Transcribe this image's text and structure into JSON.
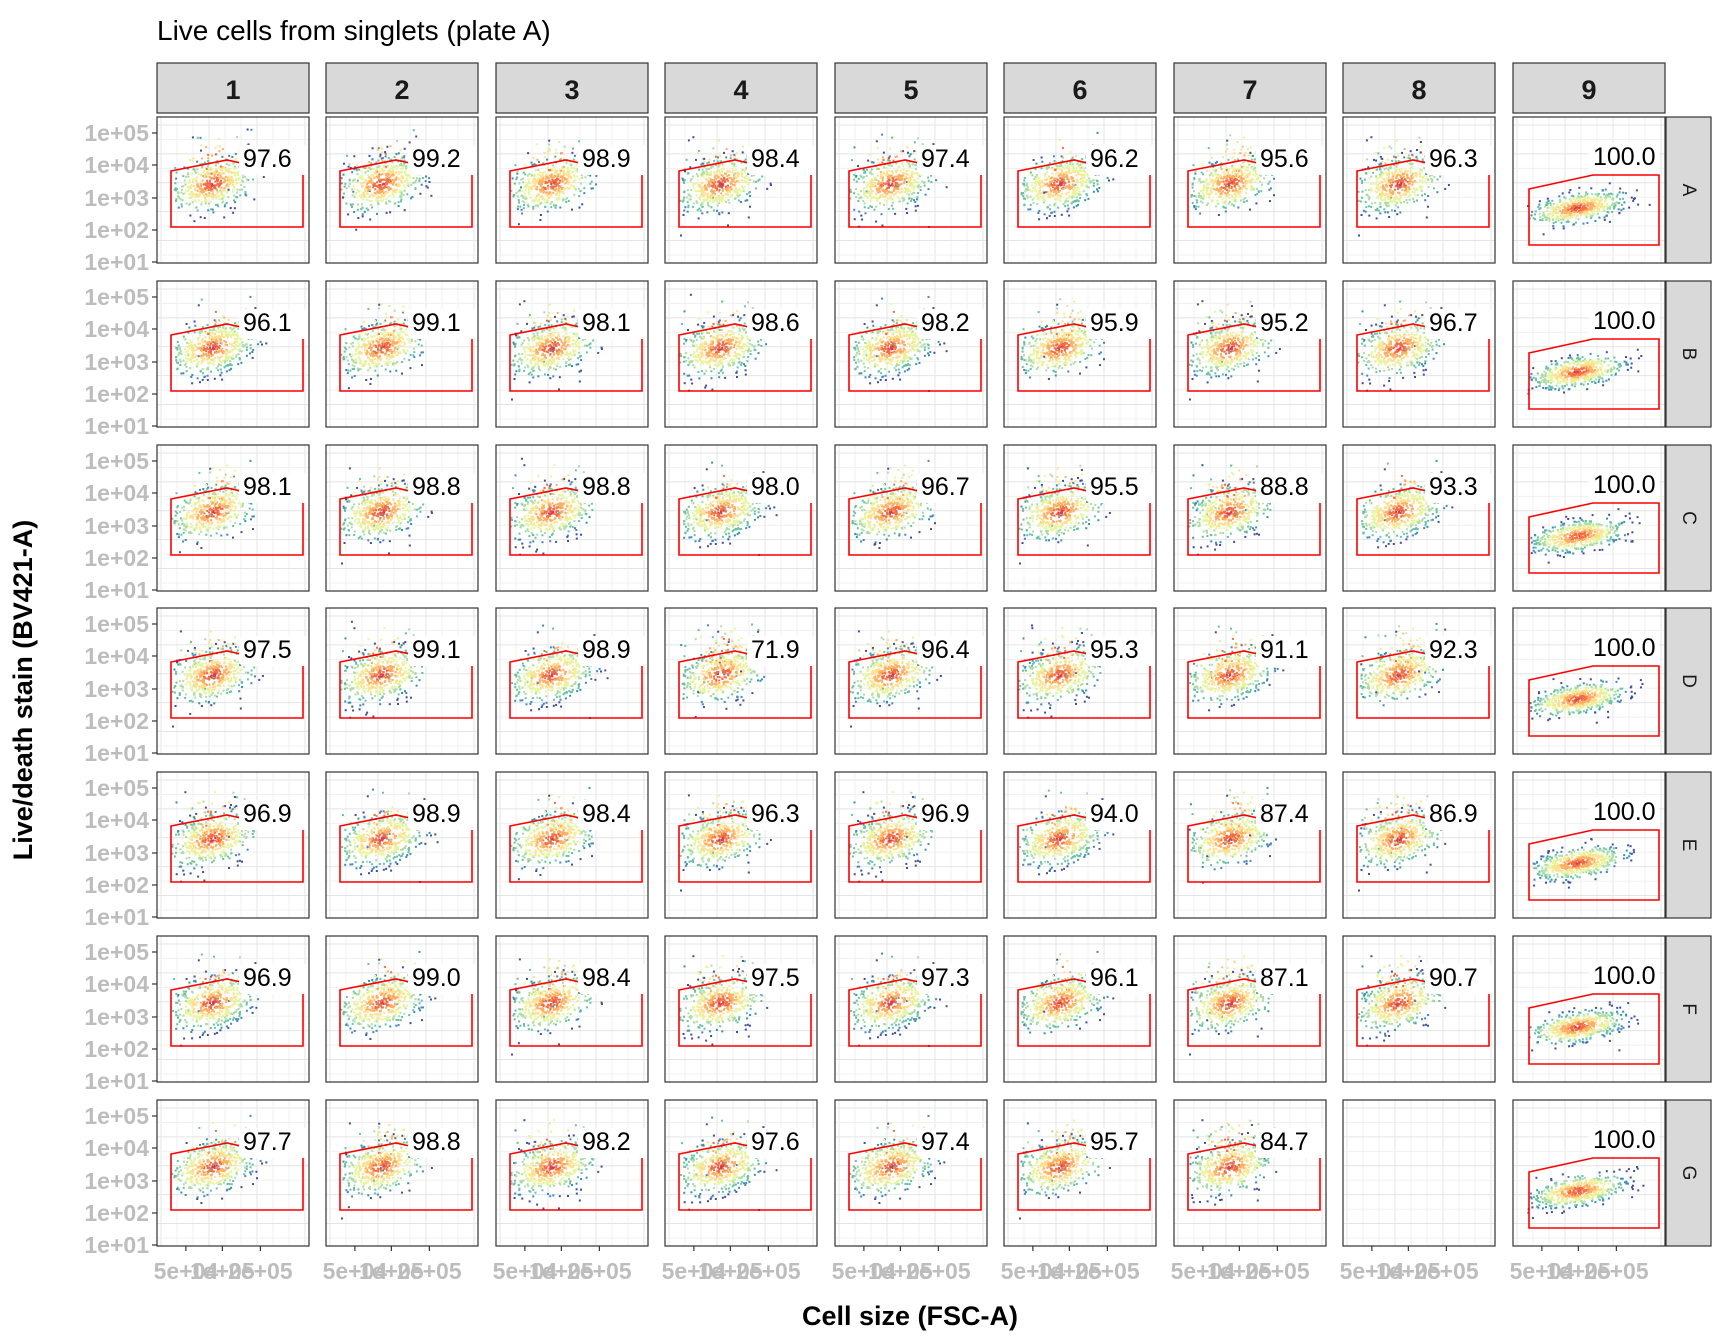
{
  "chart_data": {
    "type": "scatter",
    "title": "Live cells from singlets (plate A)",
    "xlabel": "Cell size (FSC-A)",
    "ylabel": "Live/death stain (BV421-A)",
    "x_scale": "log",
    "y_scale": "log",
    "y_ticks": [
      "1e+01",
      "1e+02",
      "1e+03",
      "1e+04",
      "1e+05"
    ],
    "x_ticks": [
      "5e+04",
      "1e+05",
      "2e+05"
    ],
    "x_tick_display": [
      "5e+04",
      "1e+05",
      "2e+05"
    ],
    "grid": true,
    "columns": [
      "1",
      "2",
      "3",
      "4",
      "5",
      "6",
      "7",
      "8",
      "9"
    ],
    "rows": [
      "A",
      "B",
      "C",
      "D",
      "E",
      "F",
      "G"
    ],
    "gate_percentages": [
      [
        "97.6",
        "99.2",
        "98.9",
        "98.4",
        "97.4",
        "96.2",
        "95.6",
        "96.3",
        "100.0"
      ],
      [
        "96.1",
        "99.1",
        "98.1",
        "98.6",
        "98.2",
        "95.9",
        "95.2",
        "96.7",
        "100.0"
      ],
      [
        "98.1",
        "98.8",
        "98.8",
        "98.0",
        "96.7",
        "95.5",
        "88.8",
        "93.3",
        "100.0"
      ],
      [
        "97.5",
        "99.1",
        "98.9",
        "71.9",
        "96.4",
        "95.3",
        "91.1",
        "92.3",
        "100.0"
      ],
      [
        "96.9",
        "98.9",
        "98.4",
        "96.3",
        "96.9",
        "94.0",
        "87.4",
        "86.9",
        "100.0"
      ],
      [
        "96.9",
        "99.0",
        "98.4",
        "97.5",
        "97.3",
        "96.1",
        "87.1",
        "90.7",
        "100.0"
      ],
      [
        "97.7",
        "98.8",
        "98.2",
        "97.6",
        "97.4",
        "95.7",
        "84.7",
        "",
        "100.0"
      ]
    ],
    "gate_color": "#ff0000",
    "density_palette": [
      "#3f4ea0",
      "#3e8bbb",
      "#66c2a5",
      "#abdda4",
      "#e6f598",
      "#fee08b",
      "#fdae61",
      "#f46d43",
      "#d53e4f"
    ],
    "strip_fill": "#d9d9d9",
    "panel_border": "#333333"
  }
}
